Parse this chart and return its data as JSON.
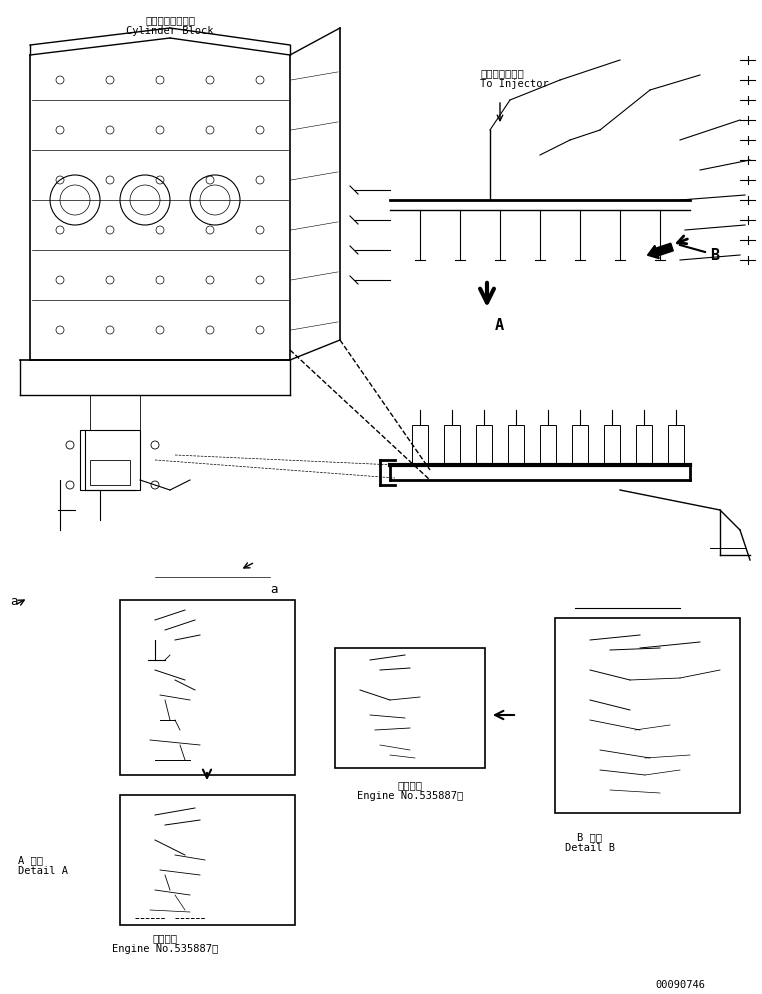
{
  "bg_color": "#ffffff",
  "line_color": "#000000",
  "fig_width": 7.62,
  "fig_height": 9.94,
  "dpi": 100,
  "part_number": "00090746",
  "texts": {
    "cylinder_block_jp": "シリンダブロック",
    "cylinder_block_en": "Cylinder Block",
    "injector_jp": "インジェクタヘ",
    "injector_en": "To Injector",
    "label_A": "A",
    "label_B": "B",
    "label_a1": "a",
    "label_a2": "a",
    "detail_A_jp": "A 詳細",
    "detail_A_en": "Detail A",
    "detail_B_jp": "B 詳細",
    "detail_B_en": "Detail B",
    "engine_no_jp1": "適用号機",
    "engine_no_en1": "Engine No.535887～",
    "engine_no_jp2": "適用号機",
    "engine_no_en2": "Engine No.535887～"
  }
}
